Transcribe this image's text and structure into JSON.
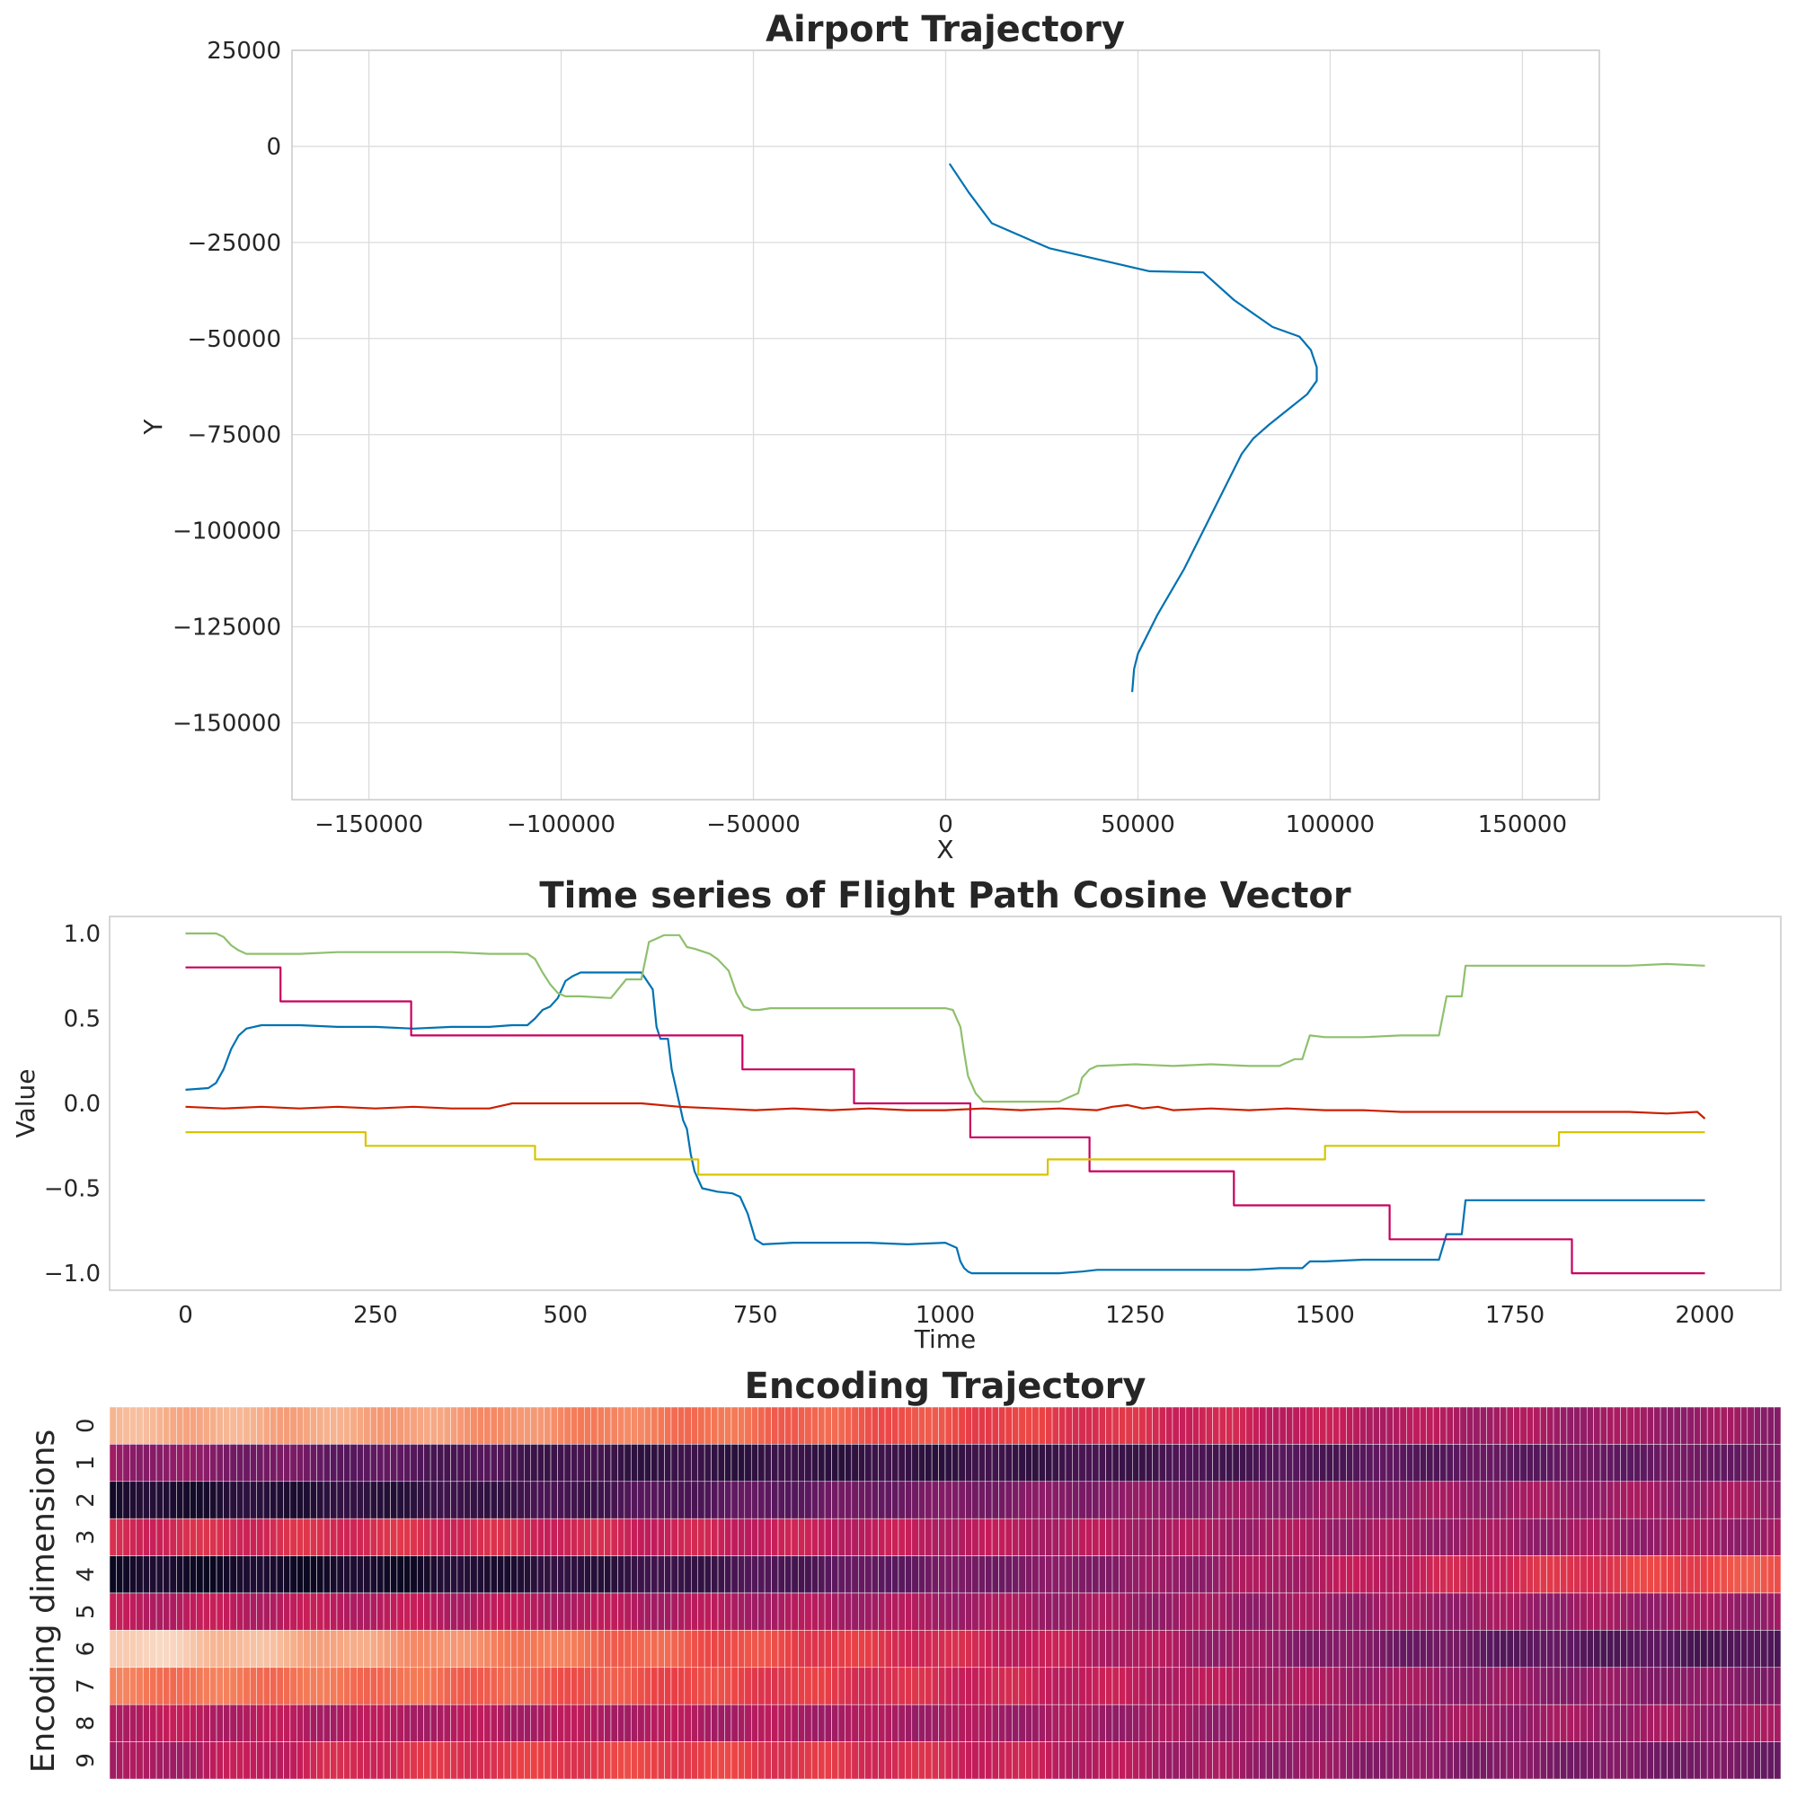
{
  "chart_data": [
    {
      "type": "line",
      "title": "Airport Trajectory",
      "xlabel": "X",
      "ylabel": "Y",
      "xlim": [
        -170000,
        170000
      ],
      "ylim": [
        -170000,
        25000
      ],
      "xticks": [
        -150000,
        -100000,
        -50000,
        0,
        50000,
        100000,
        150000
      ],
      "xtick_labels": [
        "−150000",
        "−100000",
        "−50000",
        "0",
        "50000",
        "100000",
        "150000"
      ],
      "yticks": [
        25000,
        0,
        -25000,
        -50000,
        -75000,
        -100000,
        -125000,
        -150000
      ],
      "ytick_labels": [
        "25000",
        "0",
        "−25000",
        "−50000",
        "−75000",
        "−100000",
        "−125000",
        "−150000"
      ],
      "grid": true,
      "series": [
        {
          "color": "#0072b2",
          "x": [
            1000,
            6000,
            12000,
            20000,
            27000,
            40000,
            53000,
            67000,
            75000,
            85000,
            92000,
            95000,
            96500,
            96500,
            94000,
            89000,
            84000,
            80000,
            77000,
            73000,
            68000,
            62000,
            55000,
            50000,
            49000,
            48500
          ],
          "y": [
            -4500,
            -12000,
            -20000,
            -23500,
            -26500,
            -29500,
            -32500,
            -32800,
            -40000,
            -47000,
            -49500,
            -53000,
            -57500,
            -61000,
            -64500,
            -68500,
            -72500,
            -76000,
            -80000,
            -88000,
            -98000,
            -110000,
            -122000,
            -132000,
            -136000,
            -142000
          ]
        }
      ]
    },
    {
      "type": "line",
      "title": "Time series of Flight Path Cosine Vector",
      "xlabel": "Time",
      "ylabel": "Value",
      "xlim": [
        -100,
        2100
      ],
      "ylim": [
        -1.1,
        1.1
      ],
      "xticks": [
        0,
        250,
        500,
        750,
        1000,
        1250,
        1500,
        1750,
        2000
      ],
      "xtick_labels": [
        "0",
        "250",
        "500",
        "750",
        "1000",
        "1250",
        "1500",
        "1750",
        "2000"
      ],
      "yticks": [
        1.0,
        0.5,
        0.0,
        -0.5,
        -1.0
      ],
      "ytick_labels": [
        "1.0",
        "0.5",
        "0.0",
        "−0.5",
        "−1.0"
      ],
      "grid": false,
      "series": [
        {
          "color": "#0072b2",
          "x": [
            0,
            30,
            40,
            50,
            60,
            70,
            80,
            100,
            150,
            200,
            250,
            300,
            350,
            400,
            430,
            450,
            460,
            470,
            480,
            490,
            500,
            510,
            520,
            530,
            560,
            580,
            600,
            615,
            620,
            625,
            635,
            640,
            645,
            650,
            655,
            660,
            665,
            670,
            680,
            700,
            720,
            730,
            740,
            750,
            760,
            800,
            850,
            900,
            950,
            1000,
            1015,
            1020,
            1025,
            1030,
            1035,
            1040,
            1060,
            1100,
            1150,
            1180,
            1200,
            1250,
            1300,
            1350,
            1400,
            1440,
            1470,
            1480,
            1500,
            1550,
            1600,
            1640,
            1650,
            1660,
            1670,
            1680,
            1685,
            1700,
            1750,
            1800,
            1850,
            1900,
            1950,
            2000
          ],
          "y": [
            0.08,
            0.09,
            0.12,
            0.2,
            0.32,
            0.4,
            0.44,
            0.46,
            0.46,
            0.45,
            0.45,
            0.44,
            0.45,
            0.45,
            0.46,
            0.46,
            0.5,
            0.55,
            0.57,
            0.62,
            0.72,
            0.75,
            0.77,
            0.77,
            0.77,
            0.77,
            0.77,
            0.67,
            0.45,
            0.38,
            0.38,
            0.2,
            0.1,
            0.0,
            -0.1,
            -0.15,
            -0.3,
            -0.4,
            -0.5,
            -0.52,
            -0.53,
            -0.55,
            -0.65,
            -0.8,
            -0.83,
            -0.82,
            -0.82,
            -0.82,
            -0.83,
            -0.82,
            -0.85,
            -0.93,
            -0.97,
            -0.99,
            -1.0,
            -1.0,
            -1.0,
            -1.0,
            -1.0,
            -0.99,
            -0.98,
            -0.98,
            -0.98,
            -0.98,
            -0.98,
            -0.97,
            -0.97,
            -0.93,
            -0.93,
            -0.92,
            -0.92,
            -0.92,
            -0.92,
            -0.77,
            -0.77,
            -0.77,
            -0.57,
            -0.57,
            -0.57,
            -0.57,
            -0.57,
            -0.57,
            -0.57,
            -0.57
          ]
        },
        {
          "color": "#8fc06d",
          "x": [
            0,
            40,
            50,
            60,
            70,
            80,
            100,
            150,
            200,
            250,
            300,
            350,
            400,
            450,
            460,
            470,
            480,
            490,
            500,
            520,
            560,
            580,
            600,
            610,
            620,
            630,
            650,
            660,
            670,
            690,
            700,
            715,
            725,
            735,
            745,
            755,
            770,
            800,
            850,
            900,
            950,
            1000,
            1010,
            1020,
            1025,
            1030,
            1040,
            1050,
            1060,
            1080,
            1100,
            1150,
            1160,
            1175,
            1180,
            1190,
            1200,
            1250,
            1300,
            1350,
            1400,
            1440,
            1460,
            1470,
            1480,
            1500,
            1550,
            1600,
            1640,
            1650,
            1660,
            1670,
            1680,
            1685,
            1700,
            1750,
            1800,
            1850,
            1900,
            1950,
            2000
          ],
          "y": [
            1.0,
            1.0,
            0.98,
            0.93,
            0.9,
            0.88,
            0.88,
            0.88,
            0.89,
            0.89,
            0.89,
            0.89,
            0.88,
            0.88,
            0.85,
            0.77,
            0.7,
            0.65,
            0.63,
            0.63,
            0.62,
            0.73,
            0.73,
            0.95,
            0.97,
            0.99,
            0.99,
            0.92,
            0.91,
            0.88,
            0.85,
            0.78,
            0.65,
            0.57,
            0.55,
            0.55,
            0.56,
            0.56,
            0.56,
            0.56,
            0.56,
            0.56,
            0.55,
            0.45,
            0.3,
            0.16,
            0.06,
            0.01,
            0.01,
            0.01,
            0.01,
            0.01,
            0.03,
            0.06,
            0.15,
            0.2,
            0.22,
            0.23,
            0.22,
            0.23,
            0.22,
            0.22,
            0.26,
            0.26,
            0.4,
            0.39,
            0.39,
            0.4,
            0.4,
            0.4,
            0.63,
            0.63,
            0.63,
            0.81,
            0.81,
            0.81,
            0.81,
            0.81,
            0.81,
            0.82,
            0.81
          ]
        },
        {
          "color": "#c8005f",
          "x": [
            0,
            125,
            125,
            297,
            297,
            733,
            733,
            880,
            880,
            1033,
            1033,
            1190,
            1190,
            1380,
            1380,
            1585,
            1585,
            1825,
            1825,
            2000
          ],
          "y": [
            0.8,
            0.8,
            0.6,
            0.6,
            0.4,
            0.4,
            0.2,
            0.2,
            0.0,
            0.0,
            -0.2,
            -0.2,
            -0.4,
            -0.4,
            -0.6,
            -0.6,
            -0.8,
            -0.8,
            -1.0,
            -1.0
          ]
        },
        {
          "color": "#cc1f00",
          "x": [
            0,
            50,
            100,
            150,
            200,
            250,
            300,
            350,
            400,
            420,
            430,
            450,
            500,
            550,
            600,
            650,
            700,
            750,
            800,
            850,
            900,
            950,
            1000,
            1050,
            1100,
            1150,
            1200,
            1220,
            1240,
            1260,
            1280,
            1300,
            1350,
            1400,
            1450,
            1500,
            1550,
            1600,
            1650,
            1700,
            1750,
            1800,
            1850,
            1900,
            1950,
            1990,
            2000
          ],
          "y": [
            -0.02,
            -0.03,
            -0.02,
            -0.03,
            -0.02,
            -0.03,
            -0.02,
            -0.03,
            -0.03,
            -0.01,
            0.0,
            0.0,
            0.0,
            0.0,
            0.0,
            -0.02,
            -0.03,
            -0.04,
            -0.03,
            -0.04,
            -0.03,
            -0.04,
            -0.04,
            -0.03,
            -0.04,
            -0.03,
            -0.04,
            -0.02,
            -0.01,
            -0.03,
            -0.02,
            -0.04,
            -0.03,
            -0.04,
            -0.03,
            -0.04,
            -0.04,
            -0.05,
            -0.05,
            -0.05,
            -0.05,
            -0.05,
            -0.05,
            -0.05,
            -0.06,
            -0.05,
            -0.09
          ]
        },
        {
          "color": "#d8c400",
          "x": [
            0,
            237,
            237,
            460,
            460,
            675,
            675,
            1135,
            1135,
            1500,
            1500,
            1808,
            1808,
            2000
          ],
          "y": [
            -0.17,
            -0.17,
            -0.25,
            -0.25,
            -0.33,
            -0.33,
            -0.42,
            -0.42,
            -0.33,
            -0.33,
            -0.25,
            -0.25,
            -0.17,
            -0.17
          ]
        }
      ]
    },
    {
      "type": "heatmap",
      "title": "Encoding Trajectory",
      "ylabel": "Encoding dimensions",
      "ytick_labels": [
        "0",
        "1",
        "2",
        "3",
        "4",
        "5",
        "6",
        "7",
        "8",
        "9"
      ],
      "columns": 250,
      "colormap": "rocket",
      "rows": [
        [
          0.86,
          0.82,
          0.72,
          0.62,
          0.5,
          0.42,
          0.38
        ],
        [
          0.4,
          0.24,
          0.14,
          0.14,
          0.2,
          0.26,
          0.3
        ],
        [
          0.06,
          0.12,
          0.22,
          0.32,
          0.38,
          0.4,
          0.4
        ],
        [
          0.52,
          0.54,
          0.5,
          0.46,
          0.42,
          0.4,
          0.4
        ],
        [
          0.05,
          0.05,
          0.15,
          0.3,
          0.4,
          0.52,
          0.64
        ],
        [
          0.46,
          0.46,
          0.44,
          0.42,
          0.4,
          0.4,
          0.4
        ],
        [
          0.95,
          0.8,
          0.66,
          0.52,
          0.4,
          0.26,
          0.2
        ],
        [
          0.72,
          0.7,
          0.62,
          0.52,
          0.44,
          0.38,
          0.35
        ],
        [
          0.46,
          0.44,
          0.44,
          0.42,
          0.4,
          0.4,
          0.4
        ],
        [
          0.4,
          0.54,
          0.6,
          0.52,
          0.4,
          0.34,
          0.3
        ]
      ]
    }
  ]
}
